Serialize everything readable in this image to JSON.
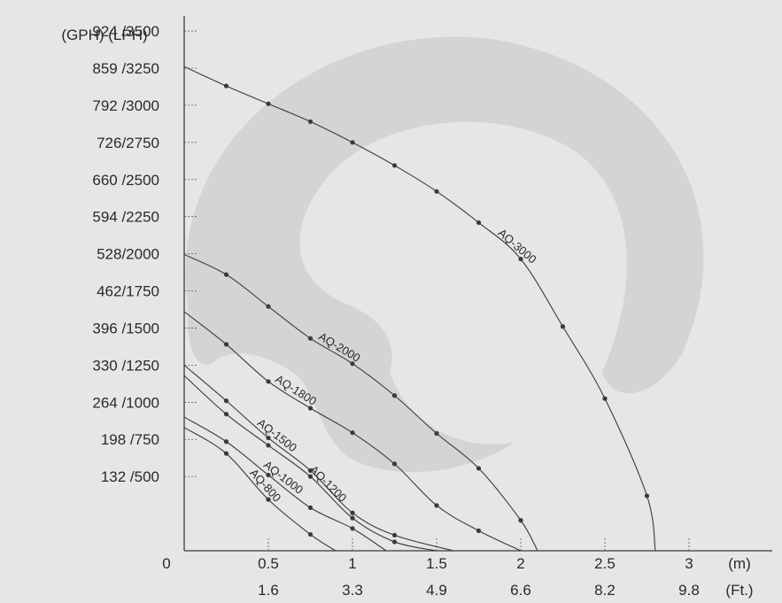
{
  "chart_data": {
    "type": "line",
    "title": "",
    "xlabel": "",
    "ylabel": "",
    "y_header": "(GPH) (LPH)",
    "xlim": [
      0,
      3.5
    ],
    "ylim": [
      0,
      3650
    ],
    "grid": false,
    "legend": "none (labels placed on curves)",
    "y_ticks": [
      {
        "value": 500,
        "label": "132 /500"
      },
      {
        "value": 750,
        "label": "198 /750"
      },
      {
        "value": 1000,
        "label": "264 /1000"
      },
      {
        "value": 1250,
        "label": "330 /1250"
      },
      {
        "value": 1500,
        "label": "396 /1500"
      },
      {
        "value": 1750,
        "label": "462/1750"
      },
      {
        "value": 2000,
        "label": "528/2000"
      },
      {
        "value": 2250,
        "label": "594 /2250"
      },
      {
        "value": 2500,
        "label": "660 /2500"
      },
      {
        "value": 2750,
        "label": "726/2750"
      },
      {
        "value": 3000,
        "label": "792 /3000"
      },
      {
        "value": 3250,
        "label": "859 /3250"
      },
      {
        "value": 3500,
        "label": "924 /3500"
      }
    ],
    "x_origin_label": "0",
    "x_ticks": [
      {
        "value": 0.5,
        "m": "0.5",
        "ft": "1.6"
      },
      {
        "value": 1,
        "m": "1",
        "ft": "3.3"
      },
      {
        "value": 1.5,
        "m": "1.5",
        "ft": "4.9"
      },
      {
        "value": 2,
        "m": "2",
        "ft": "6.6"
      },
      {
        "value": 2.5,
        "m": "2.5",
        "ft": "8.2"
      },
      {
        "value": 3,
        "m": "3",
        "ft": "9.8"
      }
    ],
    "x_unit_m": "(m)",
    "x_unit_ft": "(Ft.)",
    "series": [
      {
        "name": "AQ-3000",
        "label_at": 0.65,
        "points": [
          [
            0,
            3260
          ],
          [
            0.25,
            3130
          ],
          [
            0.5,
            3010
          ],
          [
            0.75,
            2890
          ],
          [
            1,
            2750
          ],
          [
            1.25,
            2595
          ],
          [
            1.5,
            2420
          ],
          [
            1.75,
            2210
          ],
          [
            2,
            1965
          ],
          [
            2.25,
            1510
          ],
          [
            2.5,
            1025
          ],
          [
            2.75,
            370
          ],
          [
            2.8,
            0
          ]
        ]
      },
      {
        "name": "AQ-2000",
        "label_at": 0.4,
        "points": [
          [
            0,
            1995
          ],
          [
            0.25,
            1860
          ],
          [
            0.5,
            1645
          ],
          [
            0.75,
            1430
          ],
          [
            1,
            1260
          ],
          [
            1.25,
            1045
          ],
          [
            1.5,
            790
          ],
          [
            1.75,
            555
          ],
          [
            2,
            205
          ],
          [
            2.1,
            0
          ]
        ]
      },
      {
        "name": "AQ-1800",
        "label_at": 0.32,
        "points": [
          [
            0,
            1610
          ],
          [
            0.25,
            1390
          ],
          [
            0.5,
            1140
          ],
          [
            0.75,
            960
          ],
          [
            1,
            795
          ],
          [
            1.25,
            585
          ],
          [
            1.5,
            305
          ],
          [
            1.75,
            135
          ],
          [
            2,
            0
          ]
        ]
      },
      {
        "name": "AQ-1500",
        "label_at": 0.35,
        "points": [
          [
            0,
            1250
          ],
          [
            0.25,
            1010
          ],
          [
            0.5,
            760
          ],
          [
            0.75,
            540
          ],
          [
            1,
            255
          ],
          [
            1.25,
            105
          ],
          [
            1.6,
            0
          ]
        ]
      },
      {
        "name": "AQ-1200",
        "label_at": 0.55,
        "points": [
          [
            0,
            1180
          ],
          [
            0.25,
            920
          ],
          [
            0.5,
            710
          ],
          [
            0.75,
            500
          ],
          [
            1,
            220
          ],
          [
            1.25,
            60
          ],
          [
            1.5,
            0
          ]
        ]
      },
      {
        "name": "AQ-1000",
        "label_at": 0.45,
        "points": [
          [
            0,
            900
          ],
          [
            0.25,
            735
          ],
          [
            0.5,
            510
          ],
          [
            0.75,
            290
          ],
          [
            1,
            150
          ],
          [
            1.2,
            0
          ]
        ]
      },
      {
        "name": "AQ-800",
        "label_at": 0.45,
        "points": [
          [
            0,
            830
          ],
          [
            0.25,
            655
          ],
          [
            0.5,
            345
          ],
          [
            0.75,
            110
          ],
          [
            0.9,
            0
          ]
        ]
      }
    ]
  }
}
